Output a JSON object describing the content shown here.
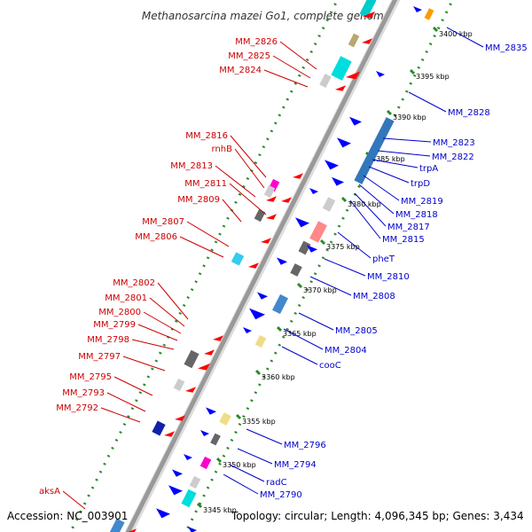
{
  "title": "Methanosarcina mazei Go1, complete genome",
  "accession": "Accession: NC_003901",
  "topology": "Topology: circular; Length: 4,096,345 bp; Genes: 3,434",
  "colors": {
    "forward_label": "#0000cc",
    "reverse_label": "#cc0000",
    "backbone": "#999999",
    "tick_dots": "#2a8a2a"
  },
  "ruler_ticks": [
    "3400 kbp",
    "3395 kbp",
    "3390 kbp",
    "3385 kbp",
    "3380 kbp",
    "3375 kbp",
    "3370 kbp",
    "3365 kbp",
    "3360 kbp",
    "3355 kbp",
    "3350 kbp",
    "3345 kbp"
  ],
  "reverse_gene_labels": [
    "MM_2826",
    "MM_2825",
    "MM_2824",
    "MM_2816",
    "rnhB",
    "MM_2813",
    "MM_2811",
    "MM_2809",
    "MM_2807",
    "MM_2806",
    "MM_2802",
    "MM_2801",
    "MM_2800",
    "MM_2799",
    "MM_2798",
    "MM_2797",
    "MM_2795",
    "MM_2793",
    "MM_2792",
    "aksA"
  ],
  "forward_gene_labels": [
    "MM_2835",
    "MM_2828",
    "MM_2823",
    "MM_2822",
    "trpA",
    "trpD",
    "MM_2819",
    "MM_2818",
    "MM_2817",
    "MM_2815",
    "pheT",
    "MM_2810",
    "MM_2808",
    "MM_2805",
    "MM_2804",
    "cooC",
    "MM_2796",
    "MM_2794",
    "radC",
    "MM_2790"
  ]
}
